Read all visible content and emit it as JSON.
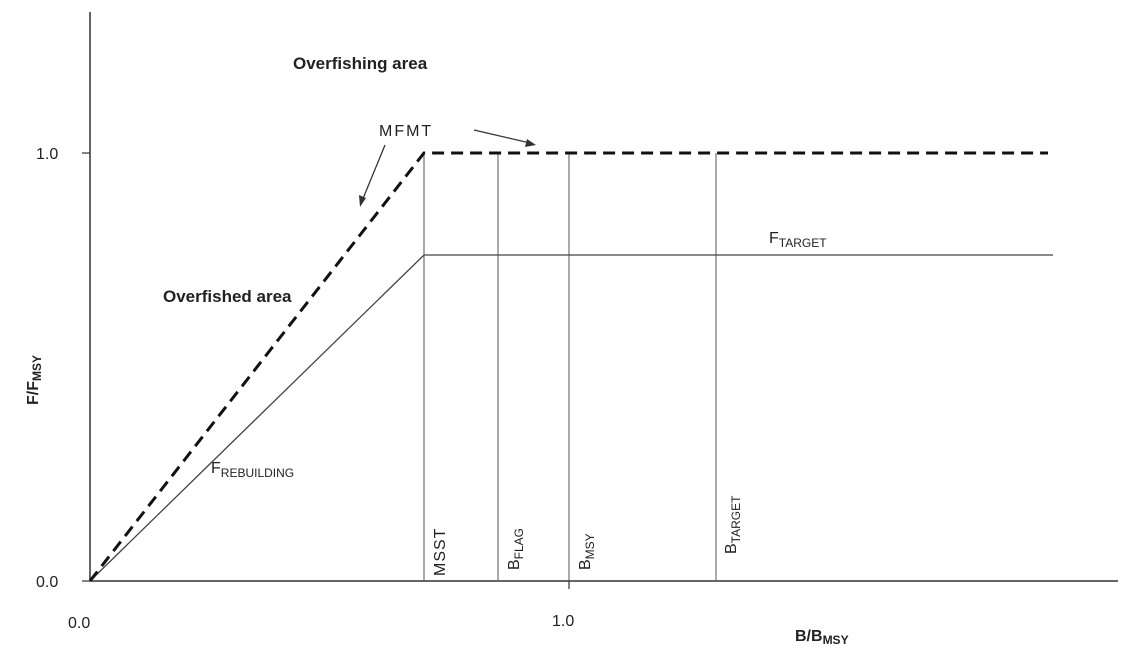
{
  "diagram": {
    "axes": {
      "y_title_main": "F/F",
      "y_title_sub": "MSY",
      "x_title_main": "B/B",
      "x_title_sub": "MSY",
      "y_tick_0": "0.0",
      "y_tick_1": "1.0",
      "x_tick_0": "0.0",
      "x_tick_1": "1.0"
    },
    "areas": {
      "overfishing": "Overfishing area",
      "overfished": "Overfished area"
    },
    "curves": {
      "mfmt": "MFMT",
      "f_target_main": "F",
      "f_target_sub": "TARGET",
      "f_rebuilding_main": "F",
      "f_rebuilding_sub": "REBUILDING"
    },
    "reference_points": {
      "msst": "MSST",
      "b_flag_main": "B",
      "b_flag_sub": "FLAG",
      "b_msy_main": "B",
      "b_msy_sub": "MSY",
      "b_target_main": "B",
      "b_target_sub": "TARGET"
    }
  }
}
